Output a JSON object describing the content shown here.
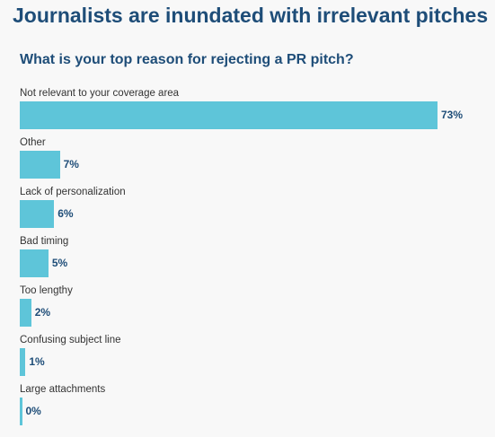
{
  "header": {
    "title": "Journalists are inundated with irrelevant pitches",
    "subtitle": "What is your top reason for rejecting a PR pitch?"
  },
  "colors": {
    "bar": "#5ec5d9",
    "text_dark": "#1e4d78",
    "label": "#333333"
  },
  "chart_data": {
    "type": "bar",
    "orientation": "horizontal",
    "title": "What is your top reason for rejecting a PR pitch?",
    "categories": [
      "Not relevant to your coverage area",
      "Other",
      "Lack of personalization",
      "Bad timing",
      "Too lengthy",
      "Confusing subject line",
      "Large attachments"
    ],
    "values": [
      73,
      7,
      6,
      5,
      2,
      1,
      0
    ],
    "value_labels": [
      "73%",
      "7%",
      "6%",
      "5%",
      "2%",
      "1%",
      "0%"
    ],
    "unit": "%",
    "xlim": [
      0,
      100
    ],
    "grid": false,
    "legend": "none"
  }
}
